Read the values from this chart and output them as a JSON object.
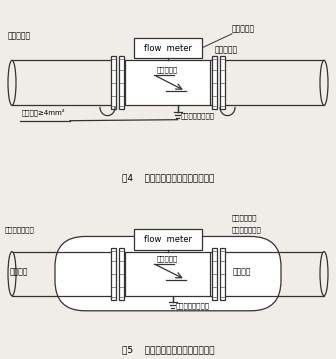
{
  "bg_color": "#f0ede8",
  "line_color": "#333333",
  "title1": "图4    电磁流量计接地连（跨）接法",
  "title2": "图5    带阴极保护电磁流量计接地法",
  "label_flow_meter": "flow  meter",
  "label_emf1": "电磁流量计",
  "label_emf2": "电磁流量计",
  "label_cross1_left": "与管道跨接",
  "label_cross1_right": "与管道跨接",
  "label_emf_tag": "电磁流量计",
  "label_ground_wire": "接地软线≥4mm²",
  "label_ground_point1": "接地点或接地干线",
  "label_cathode_left": "阴极保护引出点",
  "label_cathode_right": "阴极保护引出点",
  "label_pipe_cross": "管道接地跨接",
  "label_metal_left": "金属管道",
  "label_metal_right": "金属管道",
  "label_ground_point2": "接地点或接地干线"
}
